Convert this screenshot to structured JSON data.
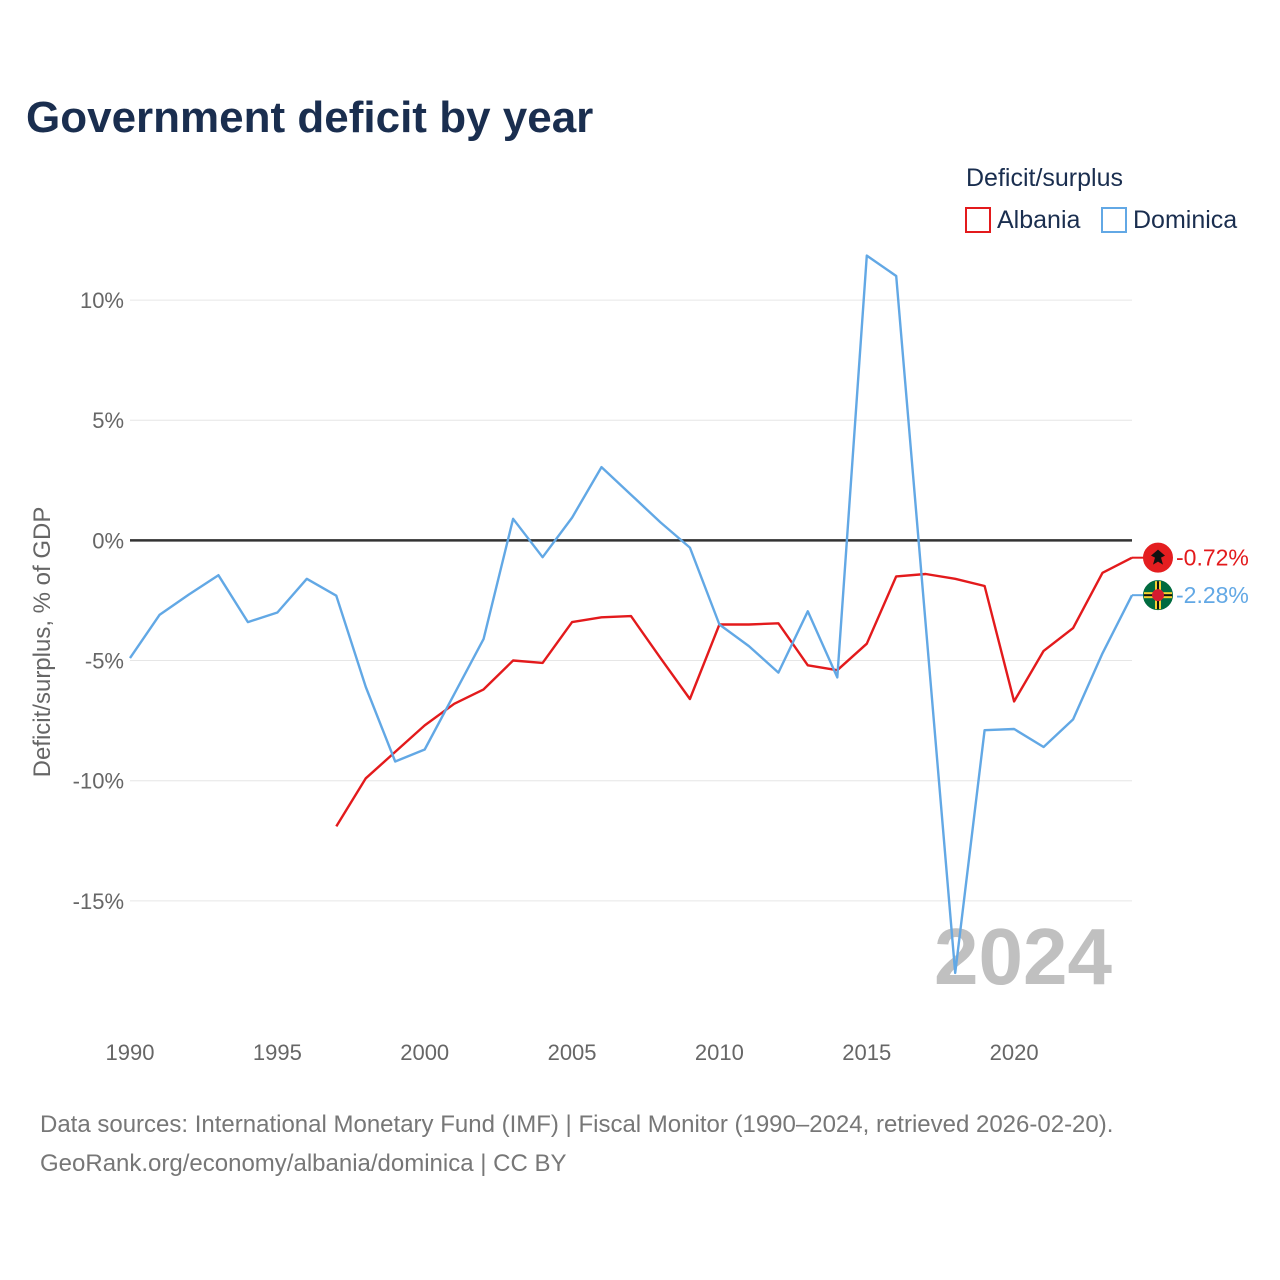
{
  "title": "Government deficit by year",
  "legend": {
    "title": "Deficit/surplus",
    "items": [
      {
        "label": "Albania",
        "color": "#e31a1c"
      },
      {
        "label": "Dominica",
        "color": "#62a8e5"
      }
    ]
  },
  "year_watermark": "2024",
  "source": {
    "line1": "Data sources: International Monetary Fund (IMF) | Fiscal Monitor (1990–2024, retrieved 2026-02-20).",
    "line2": "GeoRank.org/economy/albania/dominica | CC BY"
  },
  "chart_data": {
    "type": "line",
    "title": "Government deficit by year",
    "xlabel": "",
    "ylabel": "Deficit/surplus, % of GDP",
    "xlim": [
      1990,
      2024
    ],
    "ylim": [
      -20,
      12.5
    ],
    "x_ticks": [
      1990,
      1995,
      2000,
      2005,
      2010,
      2015,
      2020
    ],
    "y_ticks": [
      10,
      5,
      0,
      -5,
      -10,
      -15
    ],
    "y_tick_labels": [
      "10%",
      "5%",
      "0%",
      "-5%",
      "-10%",
      "-15%"
    ],
    "series": [
      {
        "name": "Albania",
        "color": "#e31a1c",
        "end_label": "-0.72%",
        "points": [
          [
            1997,
            -11.9
          ],
          [
            1998,
            -9.9
          ],
          [
            1999,
            -8.8
          ],
          [
            2000,
            -7.7
          ],
          [
            2001,
            -6.8
          ],
          [
            2002,
            -6.2
          ],
          [
            2003,
            -5.0
          ],
          [
            2004,
            -5.1
          ],
          [
            2005,
            -3.4
          ],
          [
            2006,
            -3.2
          ],
          [
            2007,
            -3.15
          ],
          [
            2008,
            -4.9
          ],
          [
            2009,
            -6.6
          ],
          [
            2010,
            -3.5
          ],
          [
            2011,
            -3.5
          ],
          [
            2012,
            -3.45
          ],
          [
            2013,
            -5.2
          ],
          [
            2014,
            -5.4
          ],
          [
            2015,
            -4.3
          ],
          [
            2016,
            -1.5
          ],
          [
            2017,
            -1.4
          ],
          [
            2018,
            -1.6
          ],
          [
            2019,
            -1.9
          ],
          [
            2020,
            -6.7
          ],
          [
            2021,
            -4.6
          ],
          [
            2022,
            -3.65
          ],
          [
            2023,
            -1.35
          ],
          [
            2024,
            -0.72
          ]
        ]
      },
      {
        "name": "Dominica",
        "color": "#62a8e5",
        "end_label": "-2.28%",
        "points": [
          [
            1990,
            -4.9
          ],
          [
            1991,
            -3.1
          ],
          [
            1992,
            -2.25
          ],
          [
            1993,
            -1.45
          ],
          [
            1994,
            -3.4
          ],
          [
            1995,
            -3.0
          ],
          [
            1996,
            -1.6
          ],
          [
            1997,
            -2.3
          ],
          [
            1998,
            -6.1
          ],
          [
            1999,
            -9.2
          ],
          [
            2000,
            -8.7
          ],
          [
            2001,
            -6.4
          ],
          [
            2002,
            -4.1
          ],
          [
            2003,
            0.9
          ],
          [
            2004,
            -0.7
          ],
          [
            2005,
            0.95
          ],
          [
            2006,
            3.05
          ],
          [
            2007,
            1.9
          ],
          [
            2008,
            0.75
          ],
          [
            2009,
            -0.3
          ],
          [
            2010,
            -3.5
          ],
          [
            2011,
            -4.4
          ],
          [
            2012,
            -5.5
          ],
          [
            2013,
            -2.95
          ],
          [
            2014,
            -5.7
          ],
          [
            2015,
            11.85
          ],
          [
            2016,
            11.0
          ],
          [
            2017,
            -3.5
          ],
          [
            2018,
            -18.0
          ],
          [
            2019,
            -7.9
          ],
          [
            2020,
            -7.85
          ],
          [
            2021,
            -8.6
          ],
          [
            2022,
            -7.45
          ],
          [
            2023,
            -4.7
          ],
          [
            2024,
            -2.28
          ]
        ]
      }
    ]
  }
}
